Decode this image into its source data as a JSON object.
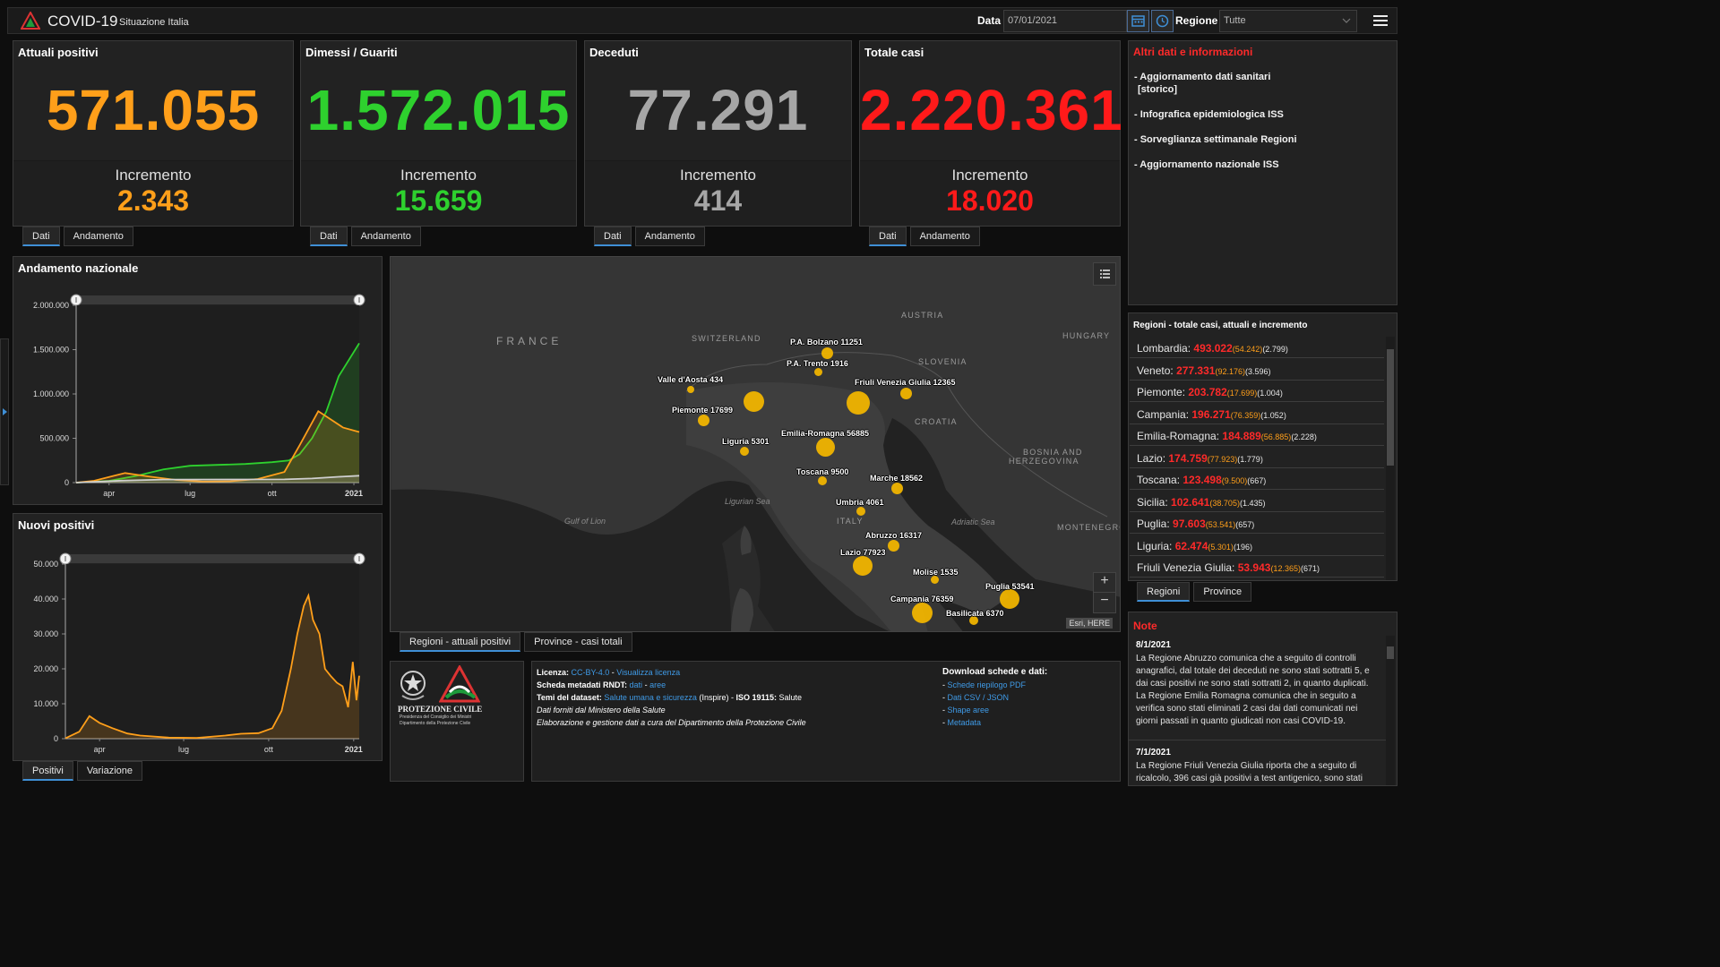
{
  "header": {
    "title": "COVID-19",
    "subtitle": "Situazione Italia",
    "date_label": "Data",
    "date_value": "07/01/2021",
    "region_label": "Regione",
    "region_value": "Tutte"
  },
  "kpis": [
    {
      "title": "Attuali positivi",
      "value": "571.055",
      "inc_label": "Incremento",
      "inc_value": "2.343",
      "color": "#ff9f1a"
    },
    {
      "title": "Dimessi / Guariti",
      "value": "1.572.015",
      "inc_label": "Incremento",
      "inc_value": "15.659",
      "color": "#2ed12e"
    },
    {
      "title": "Deceduti",
      "value": "77.291",
      "inc_label": "Incremento",
      "inc_value": "414",
      "color": "#a6a6a6"
    },
    {
      "title": "Totale casi",
      "value": "2.220.361",
      "inc_label": "Incremento",
      "inc_value": "18.020",
      "color": "#ff1a1a"
    }
  ],
  "kpi_tabs": {
    "dati": "Dati",
    "andamento": "Andamento"
  },
  "info": {
    "title": "Altri dati e informazioni",
    "links": [
      "- Aggiornamento dati sanitari",
      "[storico]",
      "- Infografica epidemiologica ISS",
      "- Sorveglianza settimanale Regioni",
      "- Aggiornamento nazionale ISS"
    ]
  },
  "chart_data": [
    {
      "type": "line",
      "title": "Andamento nazionale",
      "x_ticks": [
        "apr",
        "lug",
        "ott",
        "2021"
      ],
      "y_ticks": [
        "2.000.000",
        "1.500.000",
        "1.000.000",
        "500.000",
        "0"
      ],
      "ylim": [
        0,
        2000000
      ],
      "x_range": [
        "2020-02-24",
        "2021-01-07"
      ],
      "series": [
        {
          "color": "#2ed12e",
          "x": [
            "2020-02-24",
            "2020-04-01",
            "2020-05-01",
            "2020-06-01",
            "2020-07-01",
            "2020-08-01",
            "2020-09-01",
            "2020-10-01",
            "2020-10-20",
            "2020-11-01",
            "2020-11-15",
            "2020-12-01",
            "2020-12-15",
            "2021-01-07"
          ],
          "values": [
            0,
            20000,
            75000,
            150000,
            190000,
            200000,
            210000,
            230000,
            250000,
            320000,
            500000,
            800000,
            1200000,
            1572015
          ]
        },
        {
          "color": "#ff9f1a",
          "x": [
            "2020-02-24",
            "2020-03-15",
            "2020-04-19",
            "2020-05-15",
            "2020-06-15",
            "2020-07-15",
            "2020-08-15",
            "2020-09-15",
            "2020-10-15",
            "2020-11-01",
            "2020-11-22",
            "2020-12-05",
            "2020-12-20",
            "2021-01-07"
          ],
          "values": [
            0,
            20000,
            108000,
            70000,
            30000,
            12000,
            15000,
            40000,
            120000,
            420000,
            805000,
            720000,
            620000,
            571055
          ]
        },
        {
          "color": "#cfcfcf",
          "x": [
            "2020-02-24",
            "2020-04-15",
            "2020-06-01",
            "2020-09-01",
            "2020-10-15",
            "2020-11-15",
            "2020-12-15",
            "2021-01-07"
          ],
          "values": [
            0,
            22000,
            34000,
            35500,
            36500,
            46000,
            66000,
            77291
          ]
        }
      ]
    },
    {
      "type": "line",
      "title": "Nuovi positivi",
      "x_ticks": [
        "apr",
        "lug",
        "ott",
        "2021"
      ],
      "y_ticks": [
        "50.000",
        "40.000",
        "30.000",
        "20.000",
        "10.000",
        "0"
      ],
      "ylim": [
        0,
        50000
      ],
      "x_range": [
        "2020-02-24",
        "2021-01-07"
      ],
      "series": [
        {
          "color": "#ff9f1a",
          "x": [
            "2020-02-24",
            "2020-03-10",
            "2020-03-21",
            "2020-04-01",
            "2020-04-15",
            "2020-05-01",
            "2020-05-15",
            "2020-06-15",
            "2020-07-15",
            "2020-08-15",
            "2020-09-01",
            "2020-09-20",
            "2020-10-05",
            "2020-10-15",
            "2020-10-25",
            "2020-11-01",
            "2020-11-08",
            "2020-11-13",
            "2020-11-18",
            "2020-11-25",
            "2020-12-01",
            "2020-12-07",
            "2020-12-14",
            "2020-12-20",
            "2020-12-26",
            "2020-12-31",
            "2021-01-04",
            "2021-01-07"
          ],
          "values": [
            100,
            2000,
            6500,
            4500,
            3000,
            1500,
            900,
            300,
            200,
            900,
            1400,
            1600,
            3000,
            8000,
            20000,
            30000,
            38000,
            41000,
            34000,
            30000,
            20000,
            18000,
            16000,
            15000,
            9000,
            22000,
            11000,
            18020
          ]
        }
      ]
    }
  ],
  "chart_tabs": {
    "positivi": "Positivi",
    "variazione": "Variazione"
  },
  "map": {
    "countries": [
      "FRANCE",
      "SWITZERLAND",
      "AUSTRIA",
      "HUNGARY",
      "SLOVENIA",
      "CROATIA",
      "BOSNIA AND",
      "HERZEGOVINA",
      "MONTENEGRO",
      "ITALY"
    ],
    "seas": [
      "Gulf of Lion",
      "Ligurian Sea",
      "Adriatic Sea"
    ],
    "attribution": "Esri, HERE",
    "zoom_in": "+",
    "zoom_out": "−",
    "regions": [
      {
        "label": "P.A. Bolzano 11251",
        "value": 11251
      },
      {
        "label": "P.A. Trento 1916",
        "value": 1916
      },
      {
        "label": "Valle d'Aosta 434",
        "value": 434
      },
      {
        "label": "Friuli Venezia Giulia 12365",
        "value": 12365
      },
      {
        "label": "Piemonte 17699",
        "value": 17699
      },
      {
        "label": "Liguria 5301",
        "value": 5301
      },
      {
        "label": "Emilia-Romagna 56885",
        "value": 56885
      },
      {
        "label": "Toscana 9500",
        "value": 9500
      },
      {
        "label": "Marche 18562",
        "value": 18562
      },
      {
        "label": "Umbria 4061",
        "value": 4061
      },
      {
        "label": "Abruzzo 16317",
        "value": 16317
      },
      {
        "label": "Lazio 77923",
        "value": 77923
      },
      {
        "label": "Molise 1535",
        "value": 1535
      },
      {
        "label": "Puglia 53541",
        "value": 53541
      },
      {
        "label": "Campania 76359",
        "value": 76359
      },
      {
        "label": "Basilicata 6370",
        "value": 6370
      }
    ]
  },
  "map_tabs": {
    "attuali": "Regioni - attuali positivi",
    "province": "Province - casi totali"
  },
  "regions_panel": {
    "title": "Regioni - totale casi, attuali e incremento",
    "rows": [
      {
        "name": "Lombardia:",
        "total": "493.022",
        "actual": "(54.242)",
        "inc": "(2.799)"
      },
      {
        "name": "Veneto:",
        "total": "277.331",
        "actual": "(92.176)",
        "inc": "(3.596)"
      },
      {
        "name": "Piemonte:",
        "total": "203.782",
        "actual": "(17.699)",
        "inc": "(1.004)"
      },
      {
        "name": "Campania:",
        "total": "196.271",
        "actual": "(76.359)",
        "inc": "(1.052)"
      },
      {
        "name": "Emilia-Romagna:",
        "total": "184.889",
        "actual": "(56.885)",
        "inc": "(2.228)"
      },
      {
        "name": "Lazio:",
        "total": "174.759",
        "actual": "(77.923)",
        "inc": "(1.779)"
      },
      {
        "name": "Toscana:",
        "total": "123.498",
        "actual": "(9.500)",
        "inc": "(667)"
      },
      {
        "name": "Sicilia:",
        "total": "102.641",
        "actual": "(38.705)",
        "inc": "(1.435)"
      },
      {
        "name": "Puglia:",
        "total": "97.603",
        "actual": "(53.541)",
        "inc": "(657)"
      },
      {
        "name": "Liguria:",
        "total": "62.474",
        "actual": "(5.301)",
        "inc": "(196)"
      },
      {
        "name": "Friuli Venezia Giulia:",
        "total": "53.943",
        "actual": "(12.365)",
        "inc": "(671)"
      }
    ]
  },
  "regions_tabs": {
    "regioni": "Regioni",
    "province": "Province"
  },
  "notes": {
    "title": "Note",
    "items": [
      {
        "date": "8/1/2021",
        "text": "La Regione Abruzzo comunica che a seguito di controlli anagrafici, dal totale dei deceduti ne sono stati sottratti 5, e dai casi positivi ne sono stati sottratti 2, in quanto duplicati. La Regione Emilia Romagna comunica che in seguito a verifica sono stati eliminati 2 casi dai dati comunicati nei giorni passati in quanto giudicati non casi COVID-19."
      },
      {
        "date": "7/1/2021",
        "text": "La Regione Friuli Venezia Giulia riporta che a seguito di ricalcolo, 396 casi già positivi a test antigenico, sono stati"
      }
    ]
  },
  "logo": {
    "name": "PROTEZIONE CIVILE",
    "line1": "Presidenza del Consiglio dei Ministri",
    "line2": "Dipartimento della Protezione Civile"
  },
  "footer": {
    "licenza_label": "Licenza:",
    "licenza_value": "CC-BY-4.0",
    "licenza_sep": "-",
    "licenza_link": "Visualizza licenza",
    "scheda_label": "Scheda metadati RNDT:",
    "scheda_dati": "dati",
    "scheda_sep": "-",
    "scheda_aree": "aree",
    "temi_label": "Temi del dataset:",
    "temi_link": "Salute umana e sicurezza",
    "temi_rest1": "(Inspire) -",
    "temi_iso": "ISO 19115:",
    "temi_rest2": "Salute",
    "fonte": "Dati forniti dal Ministero della Salute",
    "elaborazione": "Elaborazione e gestione dati a cura del Dipartimento della Protezione Civile",
    "download_title": "Download schede e dati:",
    "download_links": [
      "Schede riepilogo PDF",
      "Dati CSV / JSON",
      "Shape aree",
      "Metadata"
    ]
  }
}
